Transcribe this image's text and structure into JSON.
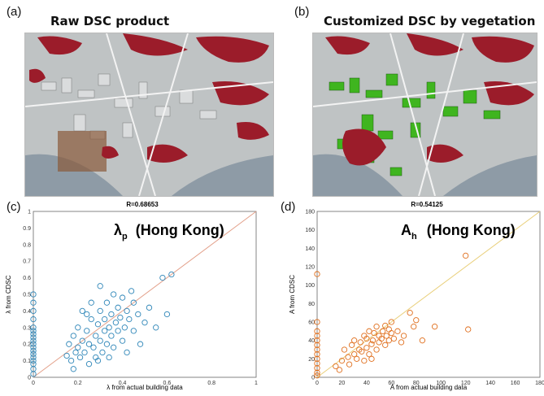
{
  "panel_a": {
    "letter": "(a)",
    "title": "Raw DSC product"
  },
  "panel_b": {
    "letter": "(b)",
    "title": "Customized DSC by vegetation"
  },
  "panel_c": {
    "letter": "(c)",
    "stat": "R=0.68653",
    "big_label": "λ",
    "big_sub": "p",
    "big_rest": "(Hong Kong)"
  },
  "panel_d": {
    "letter": "(d)",
    "stat": "R=0.54125",
    "big_label": "A",
    "big_sub": "h",
    "big_rest": "(Hong Kong)"
  },
  "colors": {
    "vegetation": "#9b1c2a",
    "green_overlay": "#3fb51f",
    "scatter_c": "#2e86b8",
    "scatter_d": "#e0701f",
    "line_c": "#e3a08a",
    "line_d": "#e9cf7a"
  },
  "chart_data": [
    {
      "type": "scatter",
      "id": "c",
      "title": "R=0.68653",
      "xlabel": "λ  from actual building data",
      "ylabel": "λ  from CDSC",
      "xlim": [
        0,
        1
      ],
      "ylim": [
        0,
        1
      ],
      "xticks": [
        "0",
        "0.2",
        "0.4",
        "0.6",
        "0.8",
        "1"
      ],
      "yticks": [
        "0",
        "0.1",
        "0.2",
        "0.3",
        "0.4",
        "0.5",
        "0.6",
        "0.7",
        "0.8",
        "0.9",
        "1"
      ],
      "reference_line": [
        [
          0,
          0
        ],
        [
          1,
          1
        ]
      ],
      "points": [
        [
          0,
          0.02
        ],
        [
          0,
          0.05
        ],
        [
          0,
          0.08
        ],
        [
          0,
          0.1
        ],
        [
          0,
          0.12
        ],
        [
          0,
          0.14
        ],
        [
          0,
          0.16
        ],
        [
          0,
          0.18
        ],
        [
          0,
          0.2
        ],
        [
          0,
          0.22
        ],
        [
          0,
          0.24
        ],
        [
          0,
          0.26
        ],
        [
          0,
          0.28
        ],
        [
          0,
          0.3
        ],
        [
          0,
          0.35
        ],
        [
          0,
          0.4
        ],
        [
          0,
          0.45
        ],
        [
          0,
          0.5
        ],
        [
          0.15,
          0.13
        ],
        [
          0.16,
          0.2
        ],
        [
          0.17,
          0.1
        ],
        [
          0.18,
          0.25
        ],
        [
          0.18,
          0.05
        ],
        [
          0.2,
          0.18
        ],
        [
          0.2,
          0.3
        ],
        [
          0.21,
          0.12
        ],
        [
          0.22,
          0.22
        ],
        [
          0.22,
          0.4
        ],
        [
          0.23,
          0.15
        ],
        [
          0.24,
          0.28
        ],
        [
          0.25,
          0.08
        ],
        [
          0.25,
          0.2
        ],
        [
          0.26,
          0.35
        ],
        [
          0.26,
          0.45
        ],
        [
          0.27,
          0.18
        ],
        [
          0.28,
          0.25
        ],
        [
          0.28,
          0.12
        ],
        [
          0.29,
          0.32
        ],
        [
          0.3,
          0.22
        ],
        [
          0.3,
          0.4
        ],
        [
          0.31,
          0.15
        ],
        [
          0.32,
          0.28
        ],
        [
          0.32,
          0.35
        ],
        [
          0.33,
          0.45
        ],
        [
          0.33,
          0.2
        ],
        [
          0.34,
          0.3
        ],
        [
          0.35,
          0.38
        ],
        [
          0.35,
          0.25
        ],
        [
          0.36,
          0.5
        ],
        [
          0.36,
          0.18
        ],
        [
          0.37,
          0.33
        ],
        [
          0.38,
          0.42
        ],
        [
          0.38,
          0.28
        ],
        [
          0.39,
          0.36
        ],
        [
          0.4,
          0.48
        ],
        [
          0.4,
          0.22
        ],
        [
          0.41,
          0.3
        ],
        [
          0.42,
          0.4
        ],
        [
          0.43,
          0.35
        ],
        [
          0.44,
          0.52
        ],
        [
          0.45,
          0.28
        ],
        [
          0.45,
          0.45
        ],
        [
          0.47,
          0.38
        ],
        [
          0.48,
          0.2
        ],
        [
          0.5,
          0.33
        ],
        [
          0.52,
          0.42
        ],
        [
          0.55,
          0.3
        ],
        [
          0.58,
          0.6
        ],
        [
          0.6,
          0.38
        ],
        [
          0.62,
          0.62
        ],
        [
          0.3,
          0.55
        ],
        [
          0.24,
          0.38
        ],
        [
          0.19,
          0.15
        ],
        [
          0.34,
          0.12
        ],
        [
          0.42,
          0.15
        ],
        [
          0.29,
          0.1
        ]
      ]
    },
    {
      "type": "scatter",
      "id": "d",
      "title": "R=0.54125",
      "xlabel": "A  from actual building data",
      "ylabel": "A  from CDSC",
      "xlim": [
        0,
        180
      ],
      "ylim": [
        0,
        180
      ],
      "xticks": [
        "0",
        "20",
        "40",
        "60",
        "80",
        "100",
        "120",
        "140",
        "160",
        "180"
      ],
      "yticks": [
        "0",
        "20",
        "40",
        "60",
        "80",
        "100",
        "120",
        "140",
        "160",
        "180"
      ],
      "reference_line": [
        [
          0,
          0
        ],
        [
          180,
          180
        ]
      ],
      "points": [
        [
          0,
          2
        ],
        [
          0,
          5
        ],
        [
          0,
          10
        ],
        [
          0,
          15
        ],
        [
          0,
          20
        ],
        [
          0,
          25
        ],
        [
          0,
          30
        ],
        [
          0,
          35
        ],
        [
          0,
          40
        ],
        [
          0,
          45
        ],
        [
          0,
          50
        ],
        [
          0,
          60
        ],
        [
          0,
          112
        ],
        [
          15,
          12
        ],
        [
          20,
          18
        ],
        [
          22,
          30
        ],
        [
          25,
          22
        ],
        [
          28,
          35
        ],
        [
          30,
          25
        ],
        [
          30,
          40
        ],
        [
          32,
          20
        ],
        [
          34,
          30
        ],
        [
          35,
          38
        ],
        [
          36,
          28
        ],
        [
          38,
          45
        ],
        [
          40,
          32
        ],
        [
          40,
          42
        ],
        [
          42,
          25
        ],
        [
          42,
          50
        ],
        [
          44,
          36
        ],
        [
          45,
          40
        ],
        [
          46,
          48
        ],
        [
          48,
          30
        ],
        [
          48,
          55
        ],
        [
          50,
          38
        ],
        [
          50,
          45
        ],
        [
          52,
          42
        ],
        [
          53,
          50
        ],
        [
          55,
          35
        ],
        [
          55,
          56
        ],
        [
          56,
          45
        ],
        [
          58,
          40
        ],
        [
          58,
          52
        ],
        [
          60,
          48
        ],
        [
          60,
          60
        ],
        [
          62,
          42
        ],
        [
          65,
          50
        ],
        [
          68,
          38
        ],
        [
          70,
          45
        ],
        [
          75,
          70
        ],
        [
          78,
          55
        ],
        [
          80,
          62
        ],
        [
          85,
          40
        ],
        [
          95,
          55
        ],
        [
          120,
          132
        ],
        [
          122,
          52
        ],
        [
          18,
          8
        ],
        [
          26,
          14
        ],
        [
          38,
          18
        ],
        [
          44,
          20
        ]
      ]
    }
  ]
}
